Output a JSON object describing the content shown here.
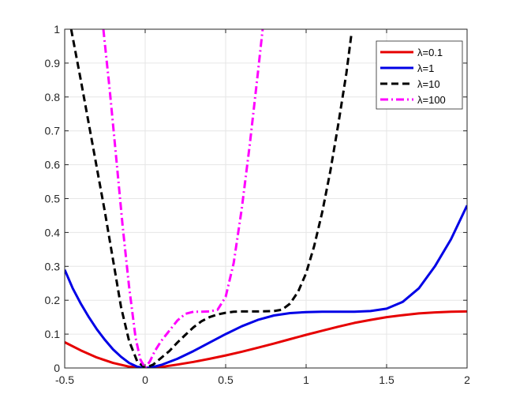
{
  "chart_data": {
    "type": "line",
    "title": "",
    "xlabel": "",
    "ylabel": "",
    "xlim": [
      -0.5,
      2
    ],
    "ylim": [
      0,
      1
    ],
    "grid": true,
    "legend_position": "top-right",
    "x_ticks": [
      "-0.5",
      "0",
      "0.5",
      "1",
      "1.5",
      "2"
    ],
    "y_ticks": [
      "0",
      "0.1",
      "0.2",
      "0.3",
      "0.4",
      "0.5",
      "0.6",
      "0.7",
      "0.8",
      "0.9",
      "1"
    ],
    "series": [
      {
        "name": "λ=0.1",
        "color": "#e60000",
        "dash": "solid",
        "x": [
          -0.5,
          -0.4,
          -0.3,
          -0.2,
          -0.1,
          0,
          0.1,
          0.2,
          0.3,
          0.4,
          0.5,
          0.6,
          0.7,
          0.8,
          0.9,
          1.0,
          1.1,
          1.2,
          1.3,
          1.4,
          1.5,
          1.6,
          1.7,
          1.8,
          1.9,
          2.0
        ],
        "y": [
          0.076,
          0.052,
          0.031,
          0.015,
          0.004,
          0,
          0.003,
          0.01,
          0.018,
          0.027,
          0.037,
          0.048,
          0.06,
          0.072,
          0.085,
          0.098,
          0.11,
          0.122,
          0.133,
          0.142,
          0.15,
          0.156,
          0.161,
          0.164,
          0.166,
          0.167
        ]
      },
      {
        "name": "λ=1",
        "color": "#0000e6",
        "dash": "solid",
        "x": [
          -0.5,
          -0.45,
          -0.4,
          -0.35,
          -0.3,
          -0.25,
          -0.2,
          -0.15,
          -0.1,
          -0.05,
          0,
          0.05,
          0.1,
          0.2,
          0.3,
          0.4,
          0.5,
          0.6,
          0.7,
          0.8,
          0.9,
          1.0,
          1.1,
          1.2,
          1.3,
          1.4,
          1.5,
          1.6,
          1.7,
          1.8,
          1.9,
          2.0
        ],
        "y": [
          0.29,
          0.235,
          0.19,
          0.15,
          0.114,
          0.083,
          0.055,
          0.033,
          0.015,
          0.004,
          0,
          0.003,
          0.009,
          0.027,
          0.05,
          0.075,
          0.1,
          0.123,
          0.142,
          0.155,
          0.162,
          0.165,
          0.166,
          0.166,
          0.166,
          0.168,
          0.175,
          0.195,
          0.235,
          0.3,
          0.38,
          0.48
        ]
      },
      {
        "name": "λ=10",
        "color": "#000000",
        "dash": "dashed",
        "x": [
          -0.46,
          -0.4,
          -0.35,
          -0.3,
          -0.25,
          -0.2,
          -0.15,
          -0.1,
          -0.05,
          0,
          0.05,
          0.1,
          0.15,
          0.2,
          0.25,
          0.3,
          0.35,
          0.4,
          0.45,
          0.5,
          0.55,
          0.6,
          0.7,
          0.8,
          0.85,
          0.9,
          0.95,
          1.0,
          1.05,
          1.1,
          1.15,
          1.2,
          1.25,
          1.28
        ],
        "y": [
          1.0,
          0.85,
          0.72,
          0.59,
          0.46,
          0.32,
          0.18,
          0.08,
          0.02,
          0,
          0.01,
          0.03,
          0.05,
          0.075,
          0.098,
          0.12,
          0.138,
          0.15,
          0.158,
          0.163,
          0.166,
          0.167,
          0.167,
          0.168,
          0.172,
          0.19,
          0.225,
          0.28,
          0.36,
          0.46,
          0.58,
          0.72,
          0.87,
          0.98
        ]
      },
      {
        "name": "λ=100",
        "color": "#ff00ff",
        "dash": "dashdot",
        "x": [
          -0.26,
          -0.22,
          -0.18,
          -0.14,
          -0.1,
          -0.06,
          -0.03,
          0,
          0.03,
          0.06,
          0.1,
          0.15,
          0.2,
          0.25,
          0.3,
          0.35,
          0.4,
          0.45,
          0.5,
          0.55,
          0.6,
          0.65,
          0.7,
          0.73
        ],
        "y": [
          1.0,
          0.82,
          0.62,
          0.42,
          0.24,
          0.09,
          0.025,
          0,
          0.02,
          0.05,
          0.08,
          0.11,
          0.14,
          0.16,
          0.166,
          0.166,
          0.167,
          0.172,
          0.21,
          0.31,
          0.47,
          0.66,
          0.87,
          1.0
        ]
      }
    ]
  }
}
